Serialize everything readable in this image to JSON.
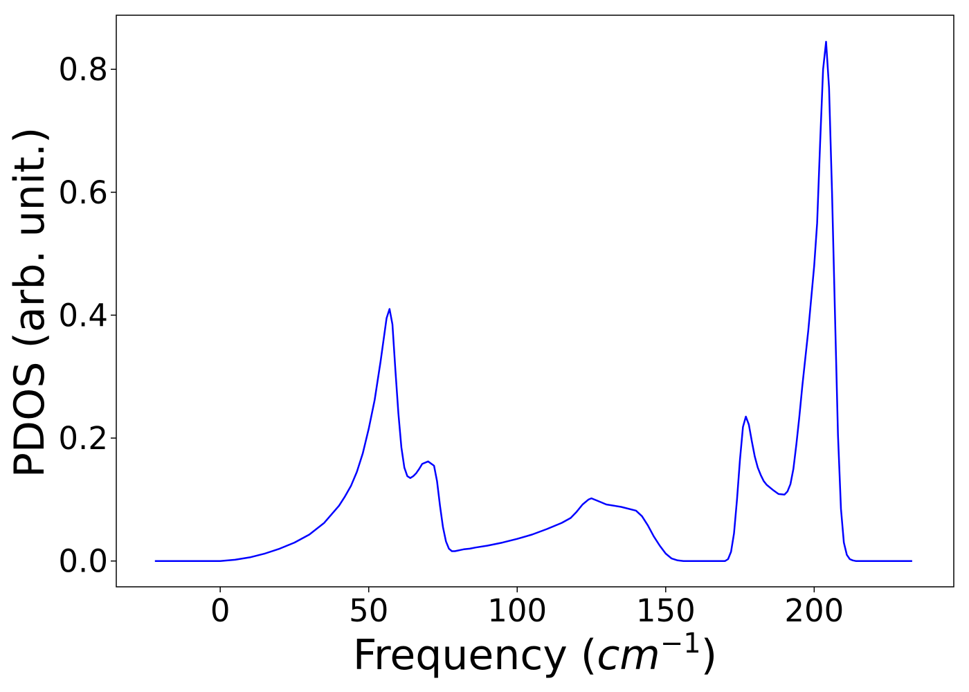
{
  "chart_data": {
    "type": "line",
    "title": "",
    "xlabel": "Frequency (",
    "xlabel_unit_base": "cm",
    "xlabel_unit_exp": "−1",
    "xlabel_close": ")",
    "ylabel": "PDOS (arb. unit.)",
    "xlim": [
      -35,
      247
    ],
    "ylim": [
      -0.042,
      0.888
    ],
    "xticks": [
      0,
      50,
      100,
      150,
      200
    ],
    "xtick_labels": [
      "0",
      "50",
      "100",
      "150",
      "200"
    ],
    "yticks": [
      0.0,
      0.2,
      0.4,
      0.6,
      0.8
    ],
    "ytick_labels": [
      "0.0",
      "0.2",
      "0.4",
      "0.6",
      "0.8"
    ],
    "grid": false,
    "series": [
      {
        "color": "#0000ff",
        "x": [
          -22,
          0,
          5,
          10,
          15,
          20,
          25,
          30,
          35,
          40,
          42,
          44,
          46,
          48,
          50,
          52,
          54,
          56,
          57,
          58,
          59,
          60,
          61,
          62,
          63,
          64,
          65,
          66,
          67,
          68,
          70,
          72,
          73,
          74,
          75,
          76,
          77,
          78,
          79,
          80,
          81,
          82,
          84,
          86,
          90,
          95,
          100,
          105,
          110,
          115,
          118,
          120,
          122,
          124,
          125,
          126,
          128,
          130,
          135,
          140,
          142,
          144,
          146,
          148,
          150,
          152,
          154,
          156,
          160,
          165,
          170,
          171,
          172,
          173,
          174,
          175,
          176,
          177,
          178,
          179,
          180,
          181,
          182,
          183,
          184,
          186,
          188,
          190,
          191,
          192,
          193,
          194,
          195,
          196,
          198,
          200,
          201,
          202,
          203,
          204,
          205,
          206,
          207,
          208,
          209,
          210,
          211,
          212,
          213,
          214,
          215,
          216,
          217,
          218,
          220,
          225,
          233
        ],
        "y": [
          0.0,
          0.0,
          0.002,
          0.006,
          0.012,
          0.02,
          0.03,
          0.043,
          0.062,
          0.09,
          0.105,
          0.122,
          0.145,
          0.175,
          0.215,
          0.262,
          0.325,
          0.395,
          0.41,
          0.385,
          0.31,
          0.24,
          0.185,
          0.152,
          0.138,
          0.135,
          0.138,
          0.143,
          0.15,
          0.158,
          0.162,
          0.155,
          0.13,
          0.09,
          0.055,
          0.032,
          0.02,
          0.016,
          0.016,
          0.017,
          0.018,
          0.019,
          0.02,
          0.022,
          0.025,
          0.03,
          0.036,
          0.043,
          0.052,
          0.062,
          0.07,
          0.08,
          0.092,
          0.1,
          0.102,
          0.1,
          0.096,
          0.092,
          0.088,
          0.082,
          0.073,
          0.058,
          0.04,
          0.025,
          0.012,
          0.004,
          0.001,
          0.0,
          0.0,
          0.0,
          0.0,
          0.003,
          0.015,
          0.045,
          0.1,
          0.165,
          0.218,
          0.235,
          0.222,
          0.195,
          0.17,
          0.152,
          0.14,
          0.13,
          0.124,
          0.116,
          0.109,
          0.108,
          0.113,
          0.125,
          0.15,
          0.19,
          0.235,
          0.285,
          0.375,
          0.48,
          0.55,
          0.68,
          0.8,
          0.845,
          0.77,
          0.6,
          0.4,
          0.205,
          0.085,
          0.03,
          0.01,
          0.003,
          0.001,
          0.0,
          0.0,
          0.0,
          0.0,
          0.0,
          0.0,
          0.0,
          0.0
        ]
      }
    ]
  }
}
